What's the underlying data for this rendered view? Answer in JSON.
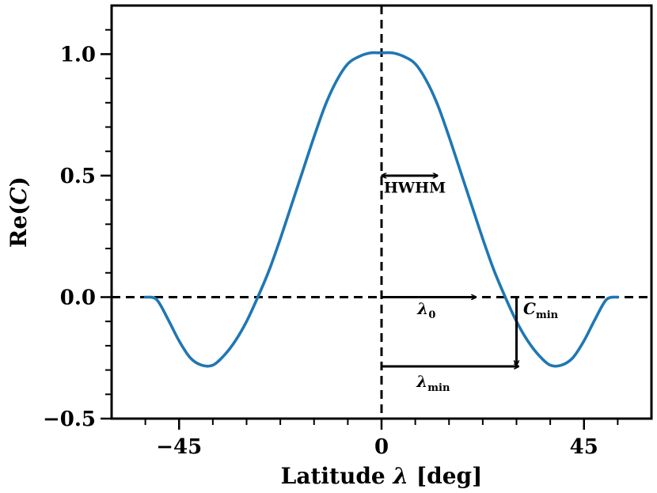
{
  "chart_data": {
    "type": "line",
    "xlabel_main": "Latitude ",
    "xlabel_symbol": "λ",
    "xlabel_unit": " [deg]",
    "ylabel_main": "Re(",
    "ylabel_symbol": "C",
    "ylabel_close": ")",
    "xlim": [
      -60,
      60
    ],
    "ylim": [
      -0.5,
      1.2
    ],
    "xticks": [
      -45,
      0,
      45
    ],
    "xtick_labels": [
      "−45",
      "0",
      "45"
    ],
    "yticks": [
      -0.5,
      0.0,
      0.5,
      1.0
    ],
    "ytick_labels": [
      "−0.5",
      "0.0",
      "0.5",
      "1.0"
    ],
    "x_minor_step": 7.5,
    "y_minor_step": 0.1,
    "grid": false,
    "line_color": "#1f77b4",
    "series": [
      {
        "x": [
          -52.5,
          -50,
          -47.5,
          -45,
          -42.5,
          -40,
          -37.5,
          -35,
          -32.5,
          -30,
          -27.5,
          -25,
          -22.5,
          -20,
          -17.5,
          -15,
          -12.5,
          -10,
          -7.5,
          -5,
          -2.5,
          0,
          2.5,
          5,
          7.5,
          10,
          12.5,
          15,
          17.5,
          20,
          22.5,
          25,
          27.5,
          30,
          32.5,
          35,
          37.5,
          40,
          42.5,
          45,
          47.5,
          50,
          52.5
        ],
        "y": [
          0.0,
          -0.01,
          -0.09,
          -0.18,
          -0.25,
          -0.28,
          -0.28,
          -0.24,
          -0.18,
          -0.1,
          0.0,
          0.11,
          0.24,
          0.38,
          0.52,
          0.66,
          0.79,
          0.89,
          0.96,
          0.99,
          1.005,
          1.005,
          1.005,
          0.99,
          0.96,
          0.89,
          0.79,
          0.66,
          0.52,
          0.38,
          0.24,
          0.11,
          0.0,
          -0.1,
          -0.18,
          -0.24,
          -0.28,
          -0.28,
          -0.25,
          -0.18,
          -0.09,
          -0.01,
          0.0
        ]
      }
    ],
    "reference_lines": [
      {
        "orientation": "vertical",
        "x": 0,
        "style": "dashed"
      },
      {
        "orientation": "horizontal",
        "y": 0,
        "style": "dashed"
      }
    ],
    "annotations": [
      {
        "label": "HWHM",
        "kind": "double-arrow",
        "from": [
          0,
          0.5
        ],
        "to": [
          12.5,
          0.5
        ],
        "label_at": [
          0.5,
          0.43
        ]
      },
      {
        "label_main": "λ",
        "label_sub": "0",
        "kind": "arrow",
        "from": [
          0,
          0.0
        ],
        "to": [
          21,
          0.0
        ],
        "label_at": [
          10,
          -0.07
        ]
      },
      {
        "label_main": "C",
        "label_sub": "min",
        "kind": "arrow",
        "from": [
          30,
          0.0
        ],
        "to": [
          30,
          -0.28
        ],
        "label_at": [
          31.5,
          -0.07
        ]
      },
      {
        "label_main": "λ",
        "label_sub": "min",
        "kind": "arrow",
        "from": [
          0,
          -0.285
        ],
        "to": [
          30.5,
          -0.285
        ],
        "label_at": [
          11.5,
          -0.37
        ]
      }
    ]
  }
}
